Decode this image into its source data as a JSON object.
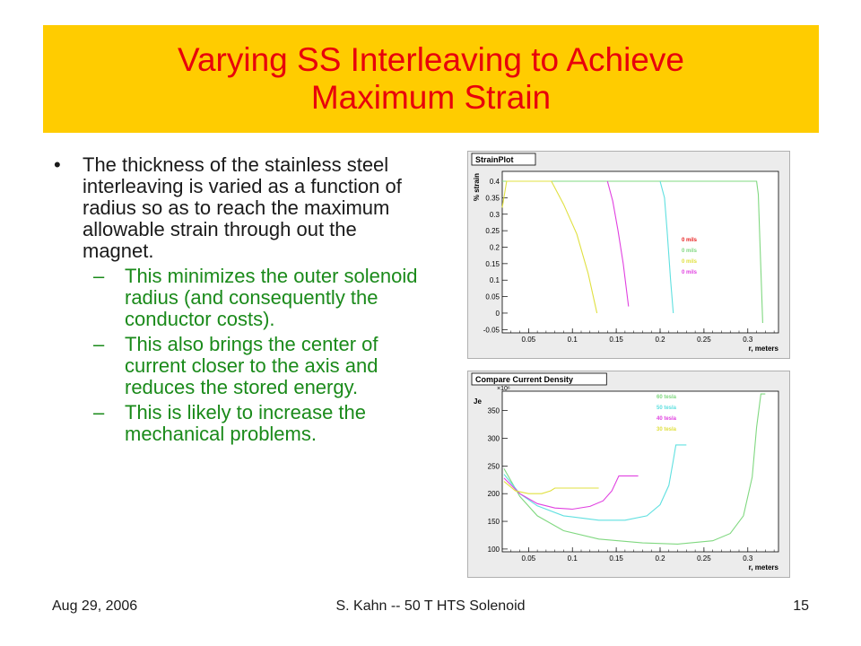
{
  "slide": {
    "title_lines": [
      "Varying SS Interleaving to Achieve",
      "Maximum Strain"
    ],
    "bullet": "The thickness of the stainless steel interleaving is varied as a function of radius so as to reach the maximum allowable strain through out the magnet.",
    "subbullets": [
      "This minimizes the outer solenoid radius (and consequently the conductor costs).",
      "This also brings the center of current closer to the axis and reduces the stored energy.",
      "This is likely to increase the mechanical problems."
    ],
    "bullet_mark": "•",
    "sub_mark": "–"
  },
  "footer": {
    "date": "Aug 29, 2006",
    "center": "S. Kahn -- 50 T HTS Solenoid",
    "page": "15"
  },
  "chart_data": [
    {
      "type": "line",
      "title": "StrainPlot",
      "xlabel": "r, meters",
      "ylabel": "% strain",
      "xlim": [
        0.02,
        0.335
      ],
      "ylim": [
        -0.06,
        0.43
      ],
      "xticks": [
        "0.05",
        "0.1",
        "0.15",
        "0.2",
        "0.25",
        "0.3"
      ],
      "xtick_values": [
        0.05,
        0.1,
        0.15,
        0.2,
        0.25,
        0.3
      ],
      "yticks": [
        "-0.05",
        "0",
        "0.05",
        "0.1",
        "0.15",
        "0.2",
        "0.25",
        "0.3",
        "0.35",
        "0.4"
      ],
      "ytick_values": [
        -0.05,
        0,
        0.05,
        0.1,
        0.15,
        0.2,
        0.25,
        0.3,
        0.35,
        0.4
      ],
      "legend_placement": "center-right",
      "series": [
        {
          "name": "0 mils",
          "color": "#e82020",
          "points": []
        },
        {
          "name": "0 mils",
          "color": "#80d880",
          "points": [
            [
              0.02,
              0.4
            ],
            [
              0.31,
              0.4
            ],
            [
              0.312,
              0.36
            ],
            [
              0.314,
              0.2
            ],
            [
              0.316,
              0.05
            ],
            [
              0.317,
              -0.03
            ]
          ]
        },
        {
          "name": "0 mils",
          "color": "#e0e040",
          "points": [
            [
              0.02,
              0.32
            ],
            [
              0.025,
              0.4
            ],
            [
              0.076,
              0.4
            ],
            [
              0.09,
              0.33
            ],
            [
              0.105,
              0.24
            ],
            [
              0.118,
              0.12
            ],
            [
              0.128,
              0.0
            ]
          ]
        },
        {
          "name": "0 mils",
          "color": "#e040e0",
          "points": [
            [
              0.14,
              0.4
            ],
            [
              0.146,
              0.34
            ],
            [
              0.152,
              0.25
            ],
            [
              0.158,
              0.15
            ],
            [
              0.164,
              0.02
            ]
          ]
        },
        {
          "name": "",
          "color": "#60e0e0",
          "points": [
            [
              0.2,
              0.4
            ],
            [
              0.205,
              0.35
            ],
            [
              0.208,
              0.25
            ],
            [
              0.212,
              0.1
            ],
            [
              0.215,
              0.0
            ]
          ]
        }
      ]
    },
    {
      "type": "line",
      "title": "Compare Current Density",
      "xlabel": "r, meters",
      "ylabel": "Je",
      "y_multiplier": "×10⁶",
      "xlim": [
        0.02,
        0.335
      ],
      "ylim": [
        95,
        385
      ],
      "xticks": [
        "0.05",
        "0.1",
        "0.15",
        "0.2",
        "0.25",
        "0.3"
      ],
      "xtick_values": [
        0.05,
        0.1,
        0.15,
        0.2,
        0.25,
        0.3
      ],
      "yticks": [
        "100",
        "150",
        "200",
        "250",
        "300",
        "350"
      ],
      "ytick_values": [
        100,
        150,
        200,
        250,
        300,
        350
      ],
      "legend_placement": "top-center",
      "series": [
        {
          "name": "60 tesla",
          "color": "#80d880",
          "points": [
            [
              0.022,
              245
            ],
            [
              0.04,
              195
            ],
            [
              0.06,
              160
            ],
            [
              0.09,
              133
            ],
            [
              0.13,
              118
            ],
            [
              0.18,
              111
            ],
            [
              0.22,
              109
            ],
            [
              0.26,
              115
            ],
            [
              0.28,
              128
            ],
            [
              0.295,
              160
            ],
            [
              0.305,
              230
            ],
            [
              0.31,
              320
            ],
            [
              0.315,
              380
            ],
            [
              0.32,
              380
            ]
          ]
        },
        {
          "name": "50 tesla",
          "color": "#60e0e0",
          "points": [
            [
              0.022,
              235
            ],
            [
              0.04,
              200
            ],
            [
              0.06,
              178
            ],
            [
              0.09,
              160
            ],
            [
              0.13,
              152
            ],
            [
              0.16,
              152
            ],
            [
              0.185,
              160
            ],
            [
              0.2,
              180
            ],
            [
              0.21,
              215
            ],
            [
              0.215,
              260
            ],
            [
              0.218,
              288
            ],
            [
              0.23,
              288
            ]
          ]
        },
        {
          "name": "40 tesla",
          "color": "#e040e0",
          "points": [
            [
              0.022,
              228
            ],
            [
              0.04,
              200
            ],
            [
              0.06,
              182
            ],
            [
              0.08,
              174
            ],
            [
              0.1,
              172
            ],
            [
              0.12,
              177
            ],
            [
              0.135,
              187
            ],
            [
              0.145,
              205
            ],
            [
              0.153,
              232
            ],
            [
              0.175,
              232
            ]
          ]
        },
        {
          "name": "30 tesla",
          "color": "#e0e040",
          "points": [
            [
              0.022,
              222
            ],
            [
              0.035,
              205
            ],
            [
              0.05,
              200
            ],
            [
              0.065,
              200
            ],
            [
              0.075,
              205
            ],
            [
              0.08,
              210
            ],
            [
              0.13,
              210
            ]
          ]
        }
      ]
    }
  ]
}
